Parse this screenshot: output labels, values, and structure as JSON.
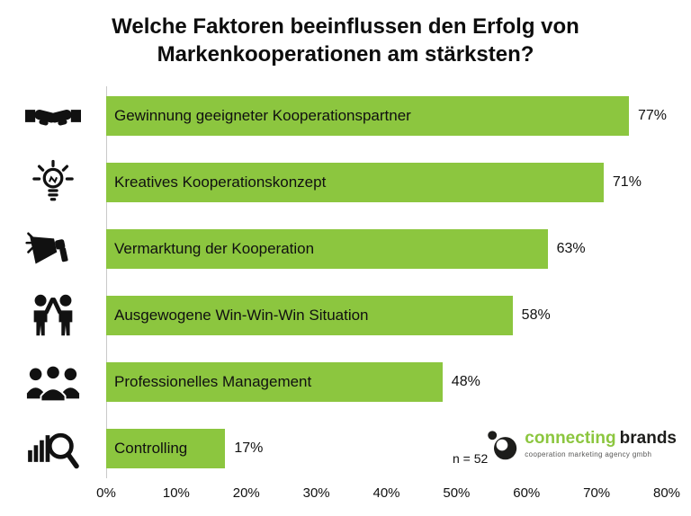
{
  "title": {
    "line1": "Welche Faktoren beeinflussen den Erfolg von",
    "line2": "Markenkooperationen am stärksten?"
  },
  "chart_data": {
    "type": "bar",
    "orientation": "horizontal",
    "title": "Welche Faktoren beeinflussen den Erfolg von Markenkooperationen am stärksten?",
    "categories": [
      "Gewinnung geeigneter Kooperationspartner",
      "Kreatives Kooperationskonzept",
      "Vermarktung der Kooperation",
      "Ausgewogene Win-Win-Win Situation",
      "Professionelles Management",
      "Controlling"
    ],
    "values": [
      77,
      71,
      63,
      58,
      48,
      17
    ],
    "value_labels": [
      "77%",
      "71%",
      "63%",
      "58%",
      "48%",
      "17%"
    ],
    "icons": [
      "handshake-icon",
      "lightbulb-icon",
      "megaphone-icon",
      "highfive-icon",
      "team-icon",
      "controlling-magnifier-icon"
    ],
    "xlim": [
      0,
      80
    ],
    "x_ticks": [
      "0%",
      "10%",
      "20%",
      "30%",
      "40%",
      "50%",
      "60%",
      "70%",
      "80%"
    ],
    "bar_color": "#8CC63F",
    "grid": false,
    "legend": false,
    "sample_note": "n = 52"
  },
  "footer": {
    "sample_note": "n = 52",
    "logo": {
      "brand_part1": "connecting",
      "brand_part2": "brands",
      "subtitle": "cooperation marketing agency gmbh",
      "green": "#8CC63F",
      "dark": "#1d1d1b",
      "subtitle_color": "#575756"
    }
  }
}
